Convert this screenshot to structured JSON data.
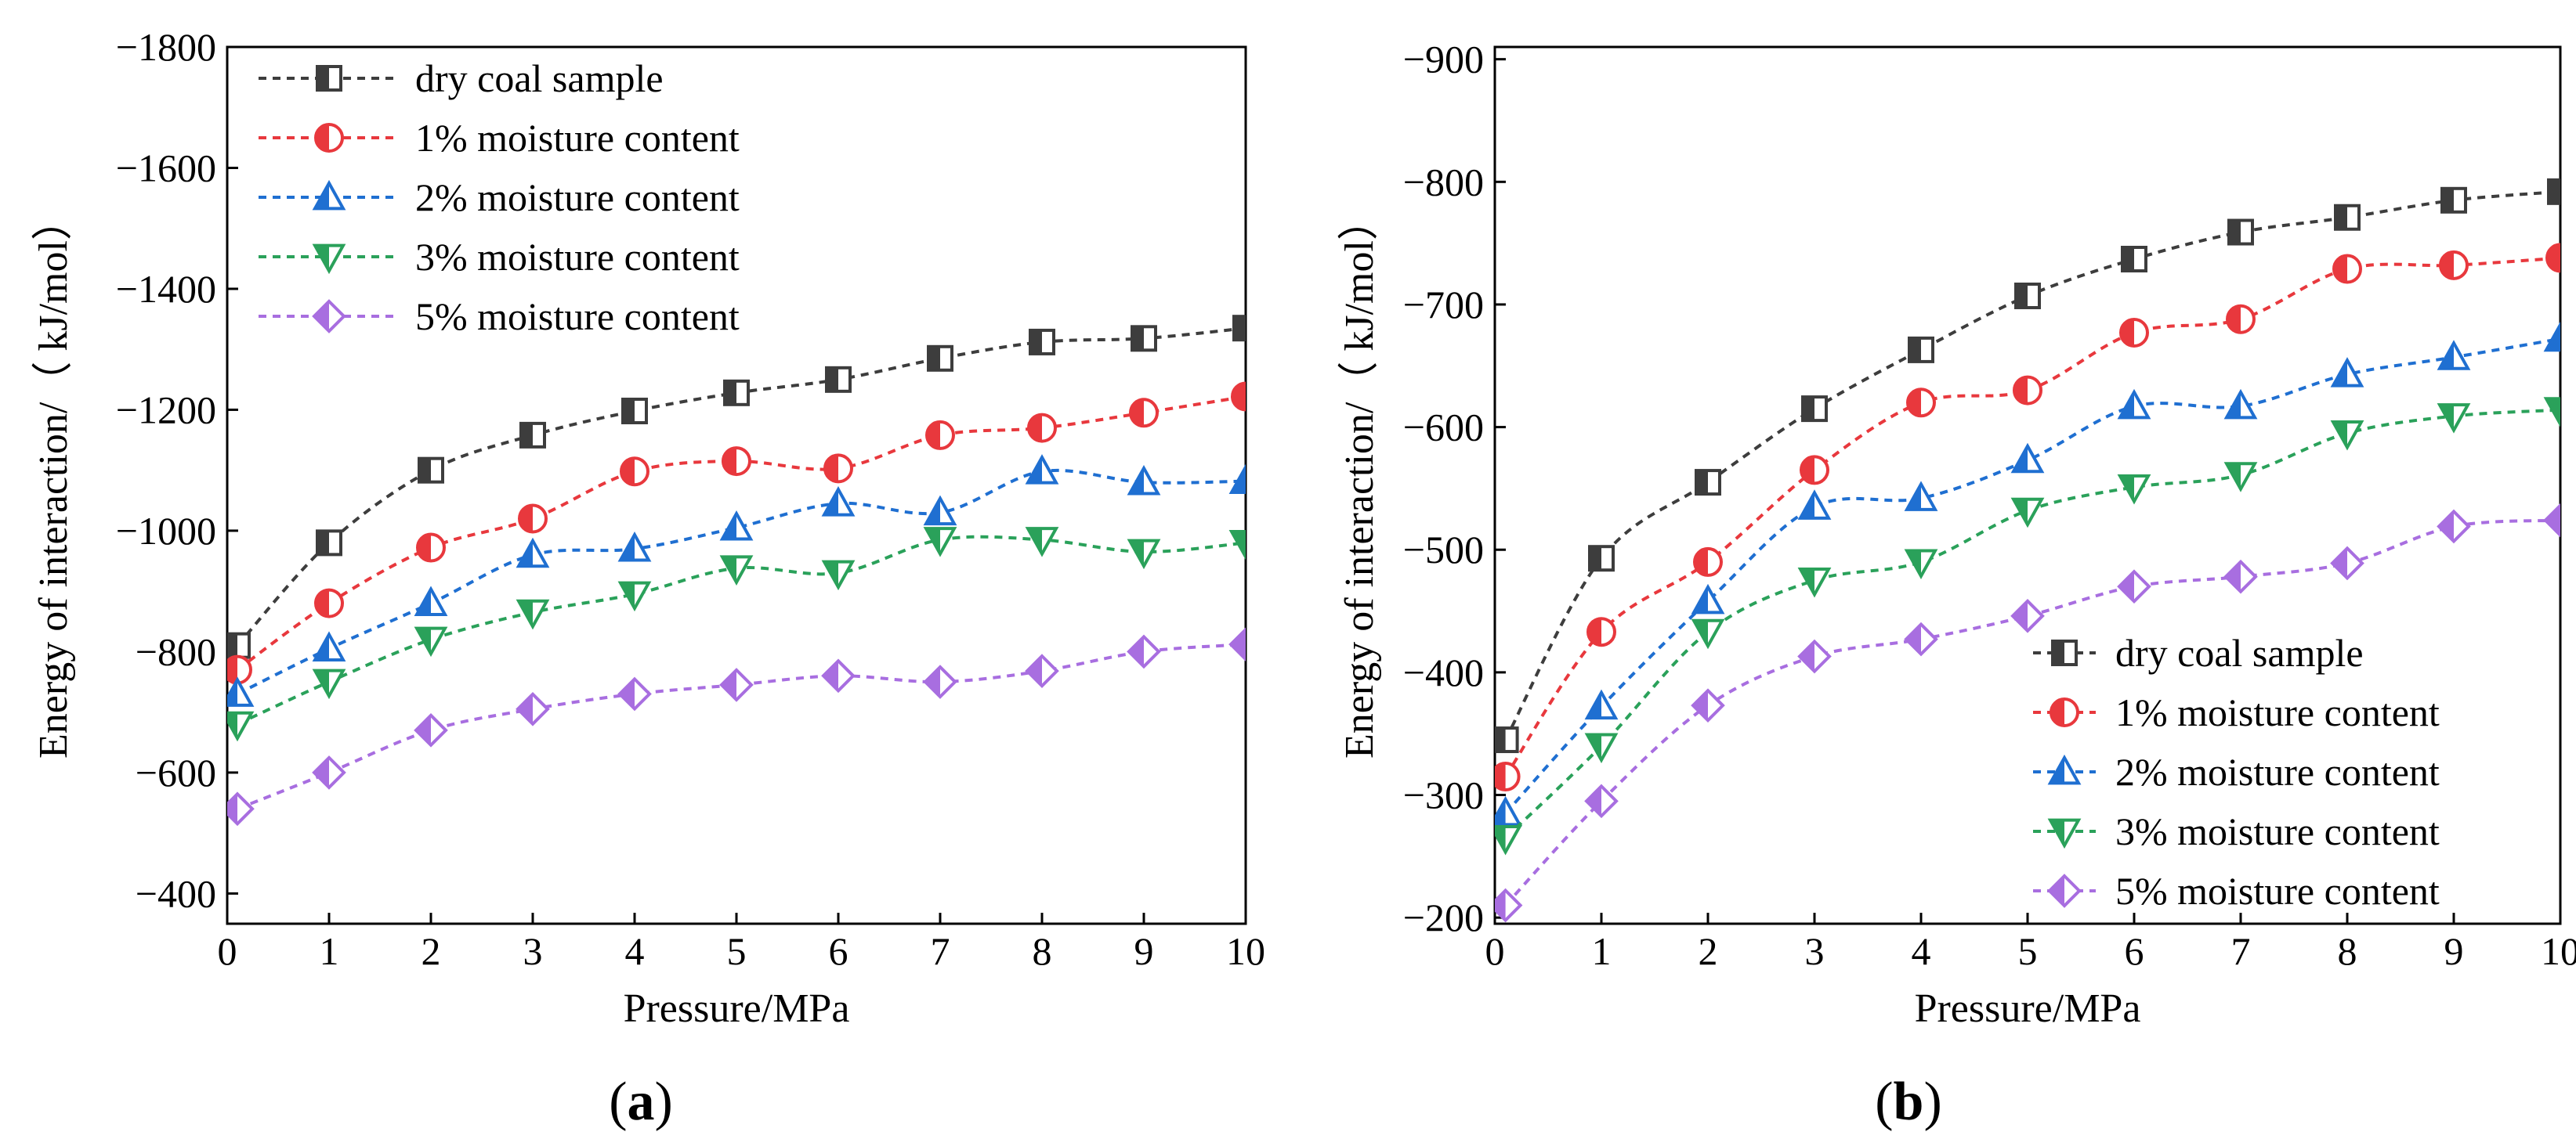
{
  "figure": {
    "panels": [
      {
        "caption_open": "(",
        "caption_letter": "a",
        "caption_close": ")"
      },
      {
        "caption_open": "(",
        "caption_letter": "b",
        "caption_close": ")"
      }
    ]
  },
  "chart_data": [
    {
      "type": "line",
      "panel": "a",
      "xlabel": "Pressure/MPa",
      "ylabel": "Energy of interaction/（ kJ/mol）",
      "xlim": [
        0,
        10
      ],
      "ylim": [
        -350,
        -1800
      ],
      "x_ticks": [
        0,
        1,
        2,
        3,
        4,
        5,
        6,
        7,
        8,
        9,
        10
      ],
      "x_tick_labels": [
        "0",
        "1",
        "2",
        "3",
        "4",
        "5",
        "6",
        "7",
        "8",
        "9",
        "10"
      ],
      "y_ticks": [
        -400,
        -600,
        -800,
        -1000,
        -1200,
        -1400,
        -1600,
        -1800
      ],
      "y_tick_labels": [
        "−400",
        "−600",
        "−800",
        "−1000",
        "−1200",
        "−1400",
        "−1600",
        "−1800"
      ],
      "legend_position": "top-left",
      "x": [
        0.1,
        1,
        2,
        3,
        4,
        5,
        6,
        7,
        8,
        9,
        10
      ],
      "series": [
        {
          "name": "dry coal sample",
          "marker": "square",
          "color": "#3d3d3d",
          "values": [
            -810,
            -980,
            -1100,
            -1158,
            -1198,
            -1228,
            -1250,
            -1285,
            -1312,
            -1318,
            -1335
          ]
        },
        {
          "name": "1% moisture content",
          "marker": "circle",
          "color": "#e8383d",
          "values": [
            -770,
            -880,
            -972,
            -1020,
            -1098,
            -1115,
            -1103,
            -1158,
            -1170,
            -1195,
            -1222
          ]
        },
        {
          "name": "2% moisture content",
          "marker": "triangle-up",
          "color": "#1f6fd1",
          "values": [
            -730,
            -805,
            -880,
            -960,
            -970,
            -1005,
            -1045,
            -1030,
            -1098,
            -1080,
            -1082
          ]
        },
        {
          "name": "3% moisture content",
          "marker": "triangle-down",
          "color": "#2aa15a",
          "values": [
            -680,
            -750,
            -820,
            -865,
            -895,
            -938,
            -930,
            -985,
            -985,
            -965,
            -980
          ]
        },
        {
          "name": "5% moisture content",
          "marker": "diamond",
          "color": "#a86ee0",
          "values": [
            -540,
            -600,
            -670,
            -705,
            -730,
            -745,
            -760,
            -750,
            -768,
            -800,
            -812
          ]
        }
      ]
    },
    {
      "type": "line",
      "panel": "b",
      "xlabel": "Pressure/MPa",
      "ylabel": "Energy of interaction/（ kJ/mol）",
      "xlim": [
        0,
        10
      ],
      "ylim": [
        -195,
        -910
      ],
      "x_ticks": [
        0,
        1,
        2,
        3,
        4,
        5,
        6,
        7,
        8,
        9,
        10
      ],
      "x_tick_labels": [
        "0",
        "1",
        "2",
        "3",
        "4",
        "5",
        "6",
        "7",
        "8",
        "9",
        "10"
      ],
      "y_ticks": [
        -200,
        -300,
        -400,
        -500,
        -600,
        -700,
        -800,
        -900
      ],
      "y_tick_labels": [
        "−200",
        "−300",
        "−400",
        "−500",
        "−600",
        "−700",
        "−800",
        "−900"
      ],
      "legend_position": "bottom-right",
      "x": [
        0.1,
        1,
        2,
        3,
        4,
        5,
        6,
        7,
        8,
        9,
        10
      ],
      "series": [
        {
          "name": "dry coal sample",
          "marker": "square",
          "color": "#3d3d3d",
          "values": [
            -345,
            -493,
            -555,
            -615,
            -663,
            -707,
            -737,
            -759,
            -771,
            -785,
            -792
          ]
        },
        {
          "name": "1% moisture content",
          "marker": "circle",
          "color": "#e8383d",
          "values": [
            -315,
            -433,
            -490,
            -565,
            -620,
            -630,
            -677,
            -688,
            -729,
            -732,
            -738
          ]
        },
        {
          "name": "2% moisture content",
          "marker": "triangle-up",
          "color": "#1f6fd1",
          "values": [
            -285,
            -372,
            -458,
            -535,
            -542,
            -573,
            -617,
            -617,
            -643,
            -657,
            -672
          ]
        },
        {
          "name": "3% moisture content",
          "marker": "triangle-down",
          "color": "#2aa15a",
          "values": [
            -265,
            -340,
            -433,
            -475,
            -490,
            -532,
            -551,
            -561,
            -595,
            -609,
            -614
          ]
        },
        {
          "name": "5% moisture content",
          "marker": "diamond",
          "color": "#a86ee0",
          "values": [
            -210,
            -295,
            -373,
            -413,
            -427,
            -446,
            -470,
            -478,
            -489,
            -519,
            -524
          ]
        }
      ]
    }
  ]
}
